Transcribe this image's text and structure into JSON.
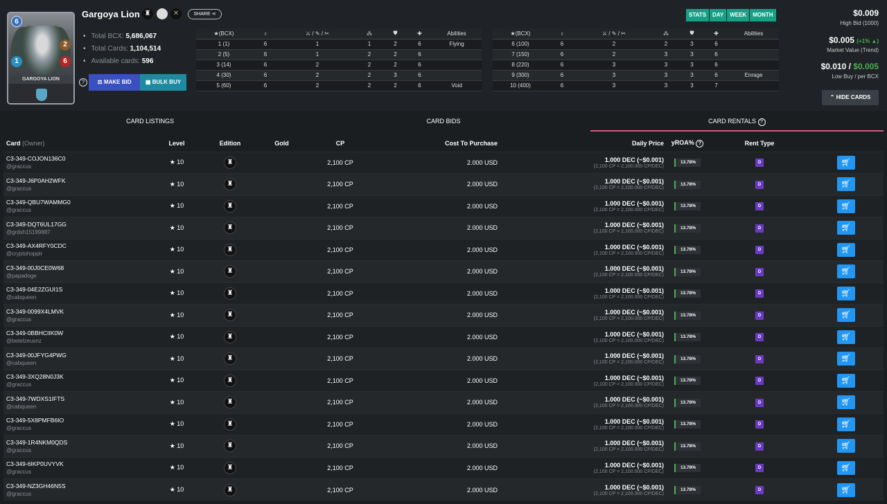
{
  "card": {
    "name": "Gargoya Lion",
    "art_name": "GARGOYA LION",
    "stats": {
      "mana": "6",
      "attack": "2",
      "speed": "1",
      "health": "6"
    },
    "edition_icon": "chaos-legion-icon",
    "share_label": "SHARE",
    "summary": [
      {
        "label": "Total BCX:",
        "value": "5,686,067"
      },
      {
        "label": "Total Cards:",
        "value": "1,104,514"
      },
      {
        "label": "Available cards:",
        "value": "596"
      }
    ],
    "make_bid_label": "MAKE BID",
    "bulk_buy_label": "BULK BUY"
  },
  "level_tables": {
    "headers": [
      "(BCX)",
      "",
      "",
      "",
      "",
      "",
      "Abilities"
    ],
    "left": [
      [
        "1 (1)",
        "6",
        "1",
        "1",
        "2",
        "6",
        "Flying"
      ],
      [
        "2 (5)",
        "6",
        "1",
        "2",
        "2",
        "6",
        ""
      ],
      [
        "3 (14)",
        "6",
        "2",
        "2",
        "2",
        "6",
        ""
      ],
      [
        "4 (30)",
        "6",
        "2",
        "2",
        "3",
        "6",
        ""
      ],
      [
        "5 (60)",
        "6",
        "2",
        "2",
        "2",
        "6",
        "Void"
      ]
    ],
    "right": [
      [
        "6 (100)",
        "6",
        "2",
        "2",
        "3",
        "6",
        ""
      ],
      [
        "7 (150)",
        "6",
        "2",
        "3",
        "3",
        "6",
        ""
      ],
      [
        "8 (220)",
        "6",
        "3",
        "3",
        "3",
        "6",
        ""
      ],
      [
        "9 (300)",
        "6",
        "3",
        "3",
        "3",
        "6",
        "Enrage"
      ],
      [
        "10 (400)",
        "6",
        "3",
        "3",
        "3",
        "7",
        ""
      ]
    ]
  },
  "timeframes": [
    "STATS",
    "DAY",
    "WEEK",
    "MONTH"
  ],
  "prices": {
    "high_bid": "$0.009",
    "high_bid_label": "High Bid (1000)",
    "market_value": "$0.005",
    "market_trend": "(+1% ▲)",
    "market_label": "Market Value (Trend)",
    "low_buy": "$0.010",
    "per_bcx": "$0.005",
    "low_label": "Low Buy / per BCX",
    "hide_cards_label": "HIDE CARDS"
  },
  "tabs": [
    "CARD LISTINGS",
    "CARD BIDS",
    "CARD RENTALS"
  ],
  "rentals": {
    "headers": {
      "card": "Card",
      "owner": "(Owner)",
      "level": "Level",
      "edition": "Edition",
      "gold": "Gold",
      "cp": "CP",
      "cost": "Cost To Purchase",
      "daily": "Daily Price",
      "yroa": "yROA%",
      "rent_type": "Rent Type"
    },
    "rows": [
      {
        "uid": "C3-349-COJON136C0",
        "owner": "@graccus"
      },
      {
        "uid": "C3-349-J6P0AH2WFK",
        "owner": "@graccus"
      },
      {
        "uid": "C3-349-QBU7WAMMG0",
        "owner": "@graccus"
      },
      {
        "uid": "C3-349-DQT6UL17GG",
        "owner": "@grdxh15199887"
      },
      {
        "uid": "C3-349-AX4RFY0CDC",
        "owner": "@cryptohoppir"
      },
      {
        "uid": "C3-349-00J0CE0W68",
        "owner": "@papadoge"
      },
      {
        "uid": "C3-349-04E2ZGUI1S",
        "owner": "@cabqueen"
      },
      {
        "uid": "C3-349-0099X4LMVK",
        "owner": "@graccus"
      },
      {
        "uid": "C3-349-0BBHCIIK0W",
        "owner": "@betelzeusnz"
      },
      {
        "uid": "C3-349-00JFYG4PWG",
        "owner": "@cabqueen"
      },
      {
        "uid": "C3-349-3XQ28N0J3K",
        "owner": "@graccus"
      },
      {
        "uid": "C3-349-7WDXS1IFTS",
        "owner": "@cabqueen"
      },
      {
        "uid": "C3-349-5X8PMFB6IO",
        "owner": "@graccus"
      },
      {
        "uid": "C3-349-1R4NKM0QDS",
        "owner": "@graccus"
      },
      {
        "uid": "C3-349-6IKP0UVYVK",
        "owner": "@graccus"
      },
      {
        "uid": "C3-349-NZ3GH46N5S",
        "owner": "@graccus"
      }
    ],
    "row_common": {
      "level": "10",
      "gold": "",
      "cp": "2,100 CP",
      "cost": "2.000 USD",
      "daily": "1.000 DEC (~$0.001)",
      "daily_sub": "(2,100 CP = 2,100.000 CP/DEC)",
      "yroa": "13.78%",
      "rent_type": "D"
    }
  }
}
